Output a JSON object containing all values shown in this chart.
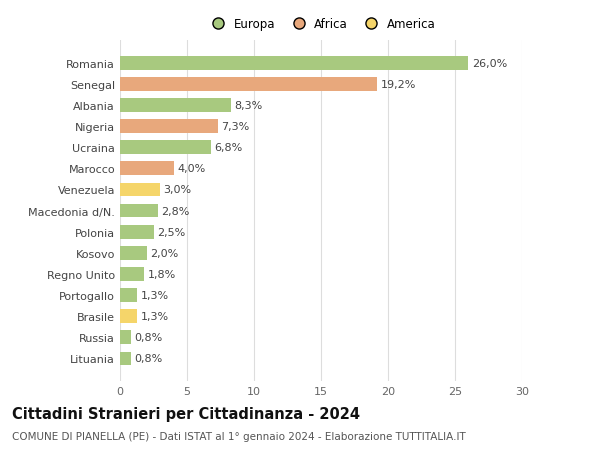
{
  "countries": [
    "Romania",
    "Senegal",
    "Albania",
    "Nigeria",
    "Ucraina",
    "Marocco",
    "Venezuela",
    "Macedonia d/N.",
    "Polonia",
    "Kosovo",
    "Regno Unito",
    "Portogallo",
    "Brasile",
    "Russia",
    "Lituania"
  ],
  "values": [
    26.0,
    19.2,
    8.3,
    7.3,
    6.8,
    4.0,
    3.0,
    2.8,
    2.5,
    2.0,
    1.8,
    1.3,
    1.3,
    0.8,
    0.8
  ],
  "continents": [
    "Europa",
    "Africa",
    "Europa",
    "Africa",
    "Europa",
    "Africa",
    "America",
    "Europa",
    "Europa",
    "Europa",
    "Europa",
    "Europa",
    "America",
    "Europa",
    "Europa"
  ],
  "colors": {
    "Europa": "#a8c97f",
    "Africa": "#e8a87c",
    "America": "#f5d56a"
  },
  "title": "Cittadini Stranieri per Cittadinanza - 2024",
  "subtitle": "COMUNE DI PIANELLA (PE) - Dati ISTAT al 1° gennaio 2024 - Elaborazione TUTTITALIA.IT",
  "xlim": [
    0,
    30
  ],
  "xticks": [
    0,
    5,
    10,
    15,
    20,
    25,
    30
  ],
  "bg_color": "#ffffff",
  "grid_color": "#dddddd",
  "bar_height": 0.65,
  "value_fontsize": 8,
  "ytick_fontsize": 8,
  "xtick_fontsize": 8,
  "title_fontsize": 10.5,
  "subtitle_fontsize": 7.5,
  "legend_fontsize": 8.5
}
